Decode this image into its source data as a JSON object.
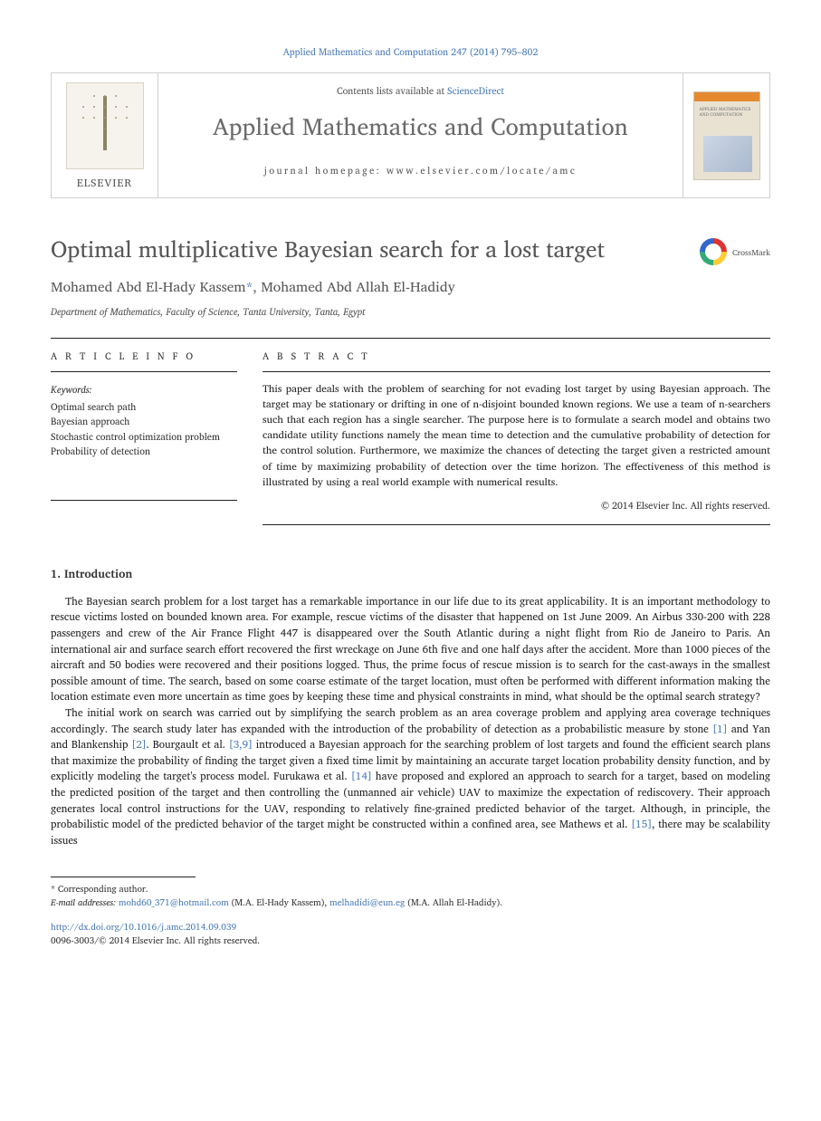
{
  "colors": {
    "link": "#4a7bb5",
    "text": "#222222",
    "muted": "#575757",
    "rule": "#222222",
    "elsevier_orange": "#e58a2e"
  },
  "header": {
    "citation_line": "Applied Mathematics and Computation 247 (2014) 795–802",
    "contents_prefix": "Contents lists available at ",
    "contents_link": "ScienceDirect",
    "journal_name": "Applied Mathematics and Computation",
    "homepage_label": "journal homepage: www.elsevier.com/locate/amc",
    "publisher_word": "ELSEVIER",
    "cover_caption": "APPLIED\nMATHEMATICS\nAND\nCOMPUTATION"
  },
  "crossmark": {
    "label": "CrossMark"
  },
  "paper": {
    "title": "Optimal multiplicative Bayesian search for a lost target",
    "authors_html": "Mohamed Abd El-Hady Kassem *, Mohamed Abd Allah El-Hadidy",
    "author1": "Mohamed Abd El-Hady Kassem",
    "author_star": "*",
    "author_sep": ", ",
    "author2": "Mohamed Abd Allah El-Hadidy",
    "affiliation": "Department of Mathematics, Faculty of Science, Tanta University, Tanta, Egypt"
  },
  "article_info": {
    "heading": "A R T I C L E   I N F O",
    "keywords_head": "Keywords:",
    "keywords": [
      "Optimal search path",
      "Bayesian approach",
      "Stochastic control optimization problem",
      "Probability of detection"
    ]
  },
  "abstract": {
    "heading": "A B S T R A C T",
    "text": "This paper deals with the problem of searching for not evading lost target by using Bayesian approach. The target may be stationary or drifting in one of n-disjoint bounded known regions. We use a team of n-searchers such that each region has a single searcher. The purpose here is to formulate a search model and obtains two candidate utility functions namely the mean time to detection and the cumulative probability of detection for the control solution. Furthermore, we maximize the chances of detecting the target given a restricted amount of time by maximizing probability of detection over the time horizon. The effectiveness of this method is illustrated by using a real world example with numerical results.",
    "copyright": "© 2014 Elsevier Inc. All rights reserved."
  },
  "sections": {
    "intro_head": "1. Introduction",
    "intro_p1_a": "The Bayesian search problem for a lost target has a remarkable importance in our life due to its great applicability. It is an important methodology to rescue victims losted on bounded known area. For example, rescue victims of the disaster that happened on 1st June 2009. An Airbus 330-200 with 228 passengers and crew of the Air France Flight 447 is disappeared over the South Atlantic during a night flight from Rio de Janeiro to Paris. An international air and surface search effort recovered the first wreckage on June 6th five and one half days after the accident. More than 1000 pieces of the aircraft and 50 bodies were recovered and their positions logged. Thus, the prime focus of rescue mission is to search for the cast-aways in the smallest possible amount of time. The search, based on some coarse estimate of the target location, must often be performed with different information making the location estimate even more uncertain as time goes by keeping these time and physical constraints in mind, what should be the optimal search strategy?",
    "intro_p2_a": "The initial work on search was carried out by simplifying the search problem as an area coverage problem and applying area coverage techniques accordingly. The search study later has expanded with the introduction of the probability of detection as a probabilistic measure by stone ",
    "ref1": "[1]",
    "intro_p2_b": " and Yan and Blankenship ",
    "ref2": "[2]",
    "intro_p2_c": ". Bourgault et al. ",
    "ref39": "[3,9]",
    "intro_p2_d": " introduced a Bayesian approach for the searching problem of lost targets and found the efficient search plans that maximize the probability of finding the target given a fixed time limit by maintaining an accurate target location probability density function, and by explicitly modeling the target's process model. Furukawa et al. ",
    "ref14": "[14]",
    "intro_p2_e": " have proposed and explored an approach to search for a target, based on modeling the predicted position of the target and then controlling the (unmanned air vehicle) UAV to maximize the expectation of rediscovery. Their approach generates local control instructions for the UAV, responding to relatively fine-grained predicted behavior of the target. Although, in principle, the probabilistic model of the predicted behavior of the target might be constructed within a confined area, see Mathews et al. ",
    "ref15": "[15]",
    "intro_p2_f": ", there may be scalability issues"
  },
  "footnotes": {
    "corr_label": "* Corresponding author.",
    "email_label": "E-mail addresses: ",
    "email1": "mohd60_371@hotmail.com",
    "email1_who": " (M.A. El-Hady Kassem), ",
    "email2": "melhadidi@eun.eg",
    "email2_who": " (M.A. Allah El-Hadidy)."
  },
  "doi": {
    "url": "http://dx.doi.org/10.1016/j.amc.2014.09.039",
    "issn_line": "0096-3003/© 2014 Elsevier Inc. All rights reserved."
  }
}
